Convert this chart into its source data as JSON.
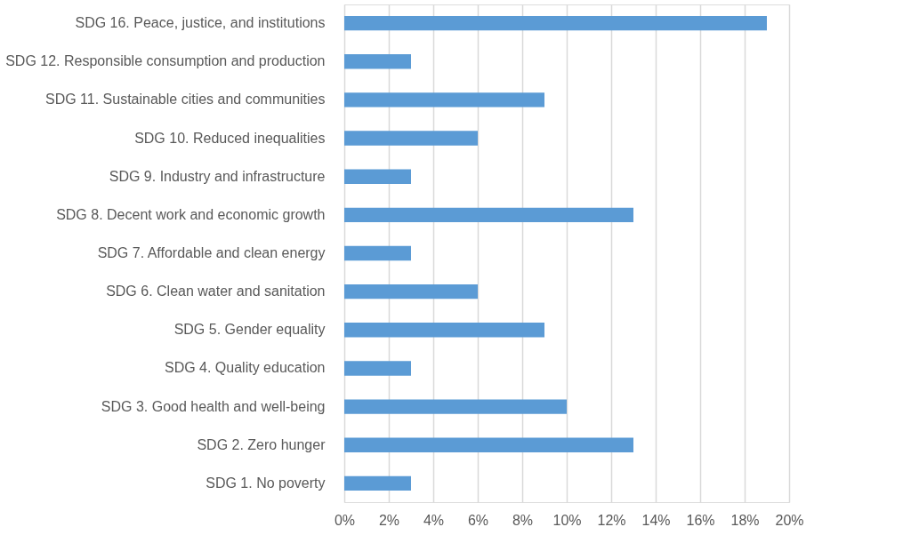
{
  "chart_data": {
    "type": "bar",
    "orientation": "horizontal",
    "categories": [
      "SDG 16. Peace, justice, and institutions",
      "SDG 12. Responsible consumption and production",
      "SDG 11. Sustainable cities and communities",
      "SDG 10. Reduced inequalities",
      "SDG 9. Industry and infrastructure",
      "SDG 8. Decent work and economic growth",
      "SDG 7. Affordable and clean energy",
      "SDG 6. Clean water and sanitation",
      "SDG 5. Gender equality",
      "SDG 4. Quality education",
      "SDG 3. Good health and well-being",
      "SDG 2. Zero hunger",
      "SDG 1. No poverty"
    ],
    "values": [
      19,
      3,
      9,
      6,
      3,
      13,
      3,
      6,
      9,
      3,
      10,
      13,
      3
    ],
    "color": "#5b9bd5",
    "xlim": [
      0,
      20
    ],
    "xticks": [
      {
        "value": 0,
        "label": "0%"
      },
      {
        "value": 2,
        "label": "2%"
      },
      {
        "value": 4,
        "label": "4%"
      },
      {
        "value": 6,
        "label": "6%"
      },
      {
        "value": 8,
        "label": "8%"
      },
      {
        "value": 10,
        "label": "10%"
      },
      {
        "value": 12,
        "label": "12%"
      },
      {
        "value": 14,
        "label": "14%"
      },
      {
        "value": 16,
        "label": "16%"
      },
      {
        "value": 18,
        "label": "18%"
      },
      {
        "value": 20,
        "label": "20%"
      }
    ],
    "grid": "x"
  }
}
